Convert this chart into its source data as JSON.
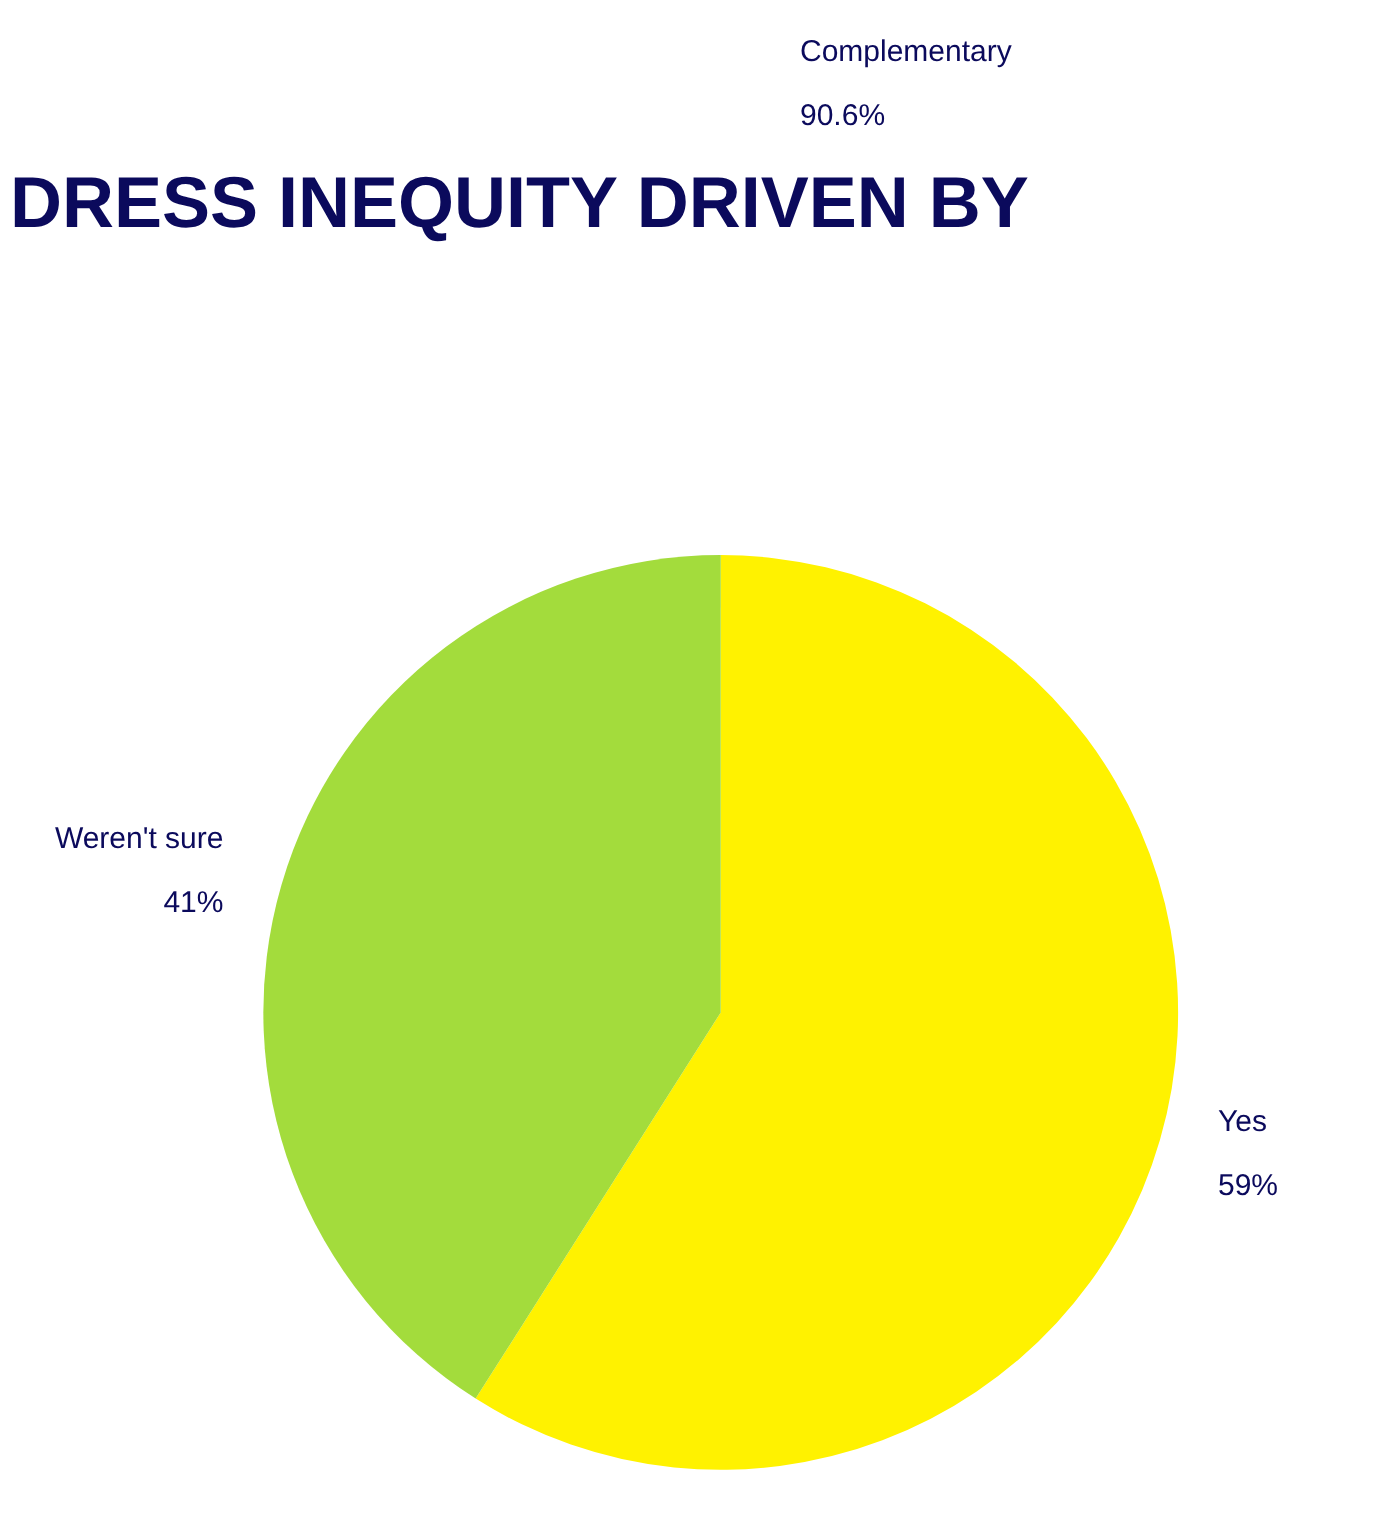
{
  "chart_data": {
    "type": "pie",
    "title": "DRESS INEQUITY DRIVEN BY",
    "categories": [
      "Yes",
      "Weren't sure"
    ],
    "values": [
      59,
      41
    ],
    "value_labels": [
      "59%",
      "41%"
    ],
    "colors": [
      "#fff200",
      "#a3dc3c"
    ],
    "annotations": [
      "Complementary\n90.6%"
    ],
    "legend": false
  }
}
